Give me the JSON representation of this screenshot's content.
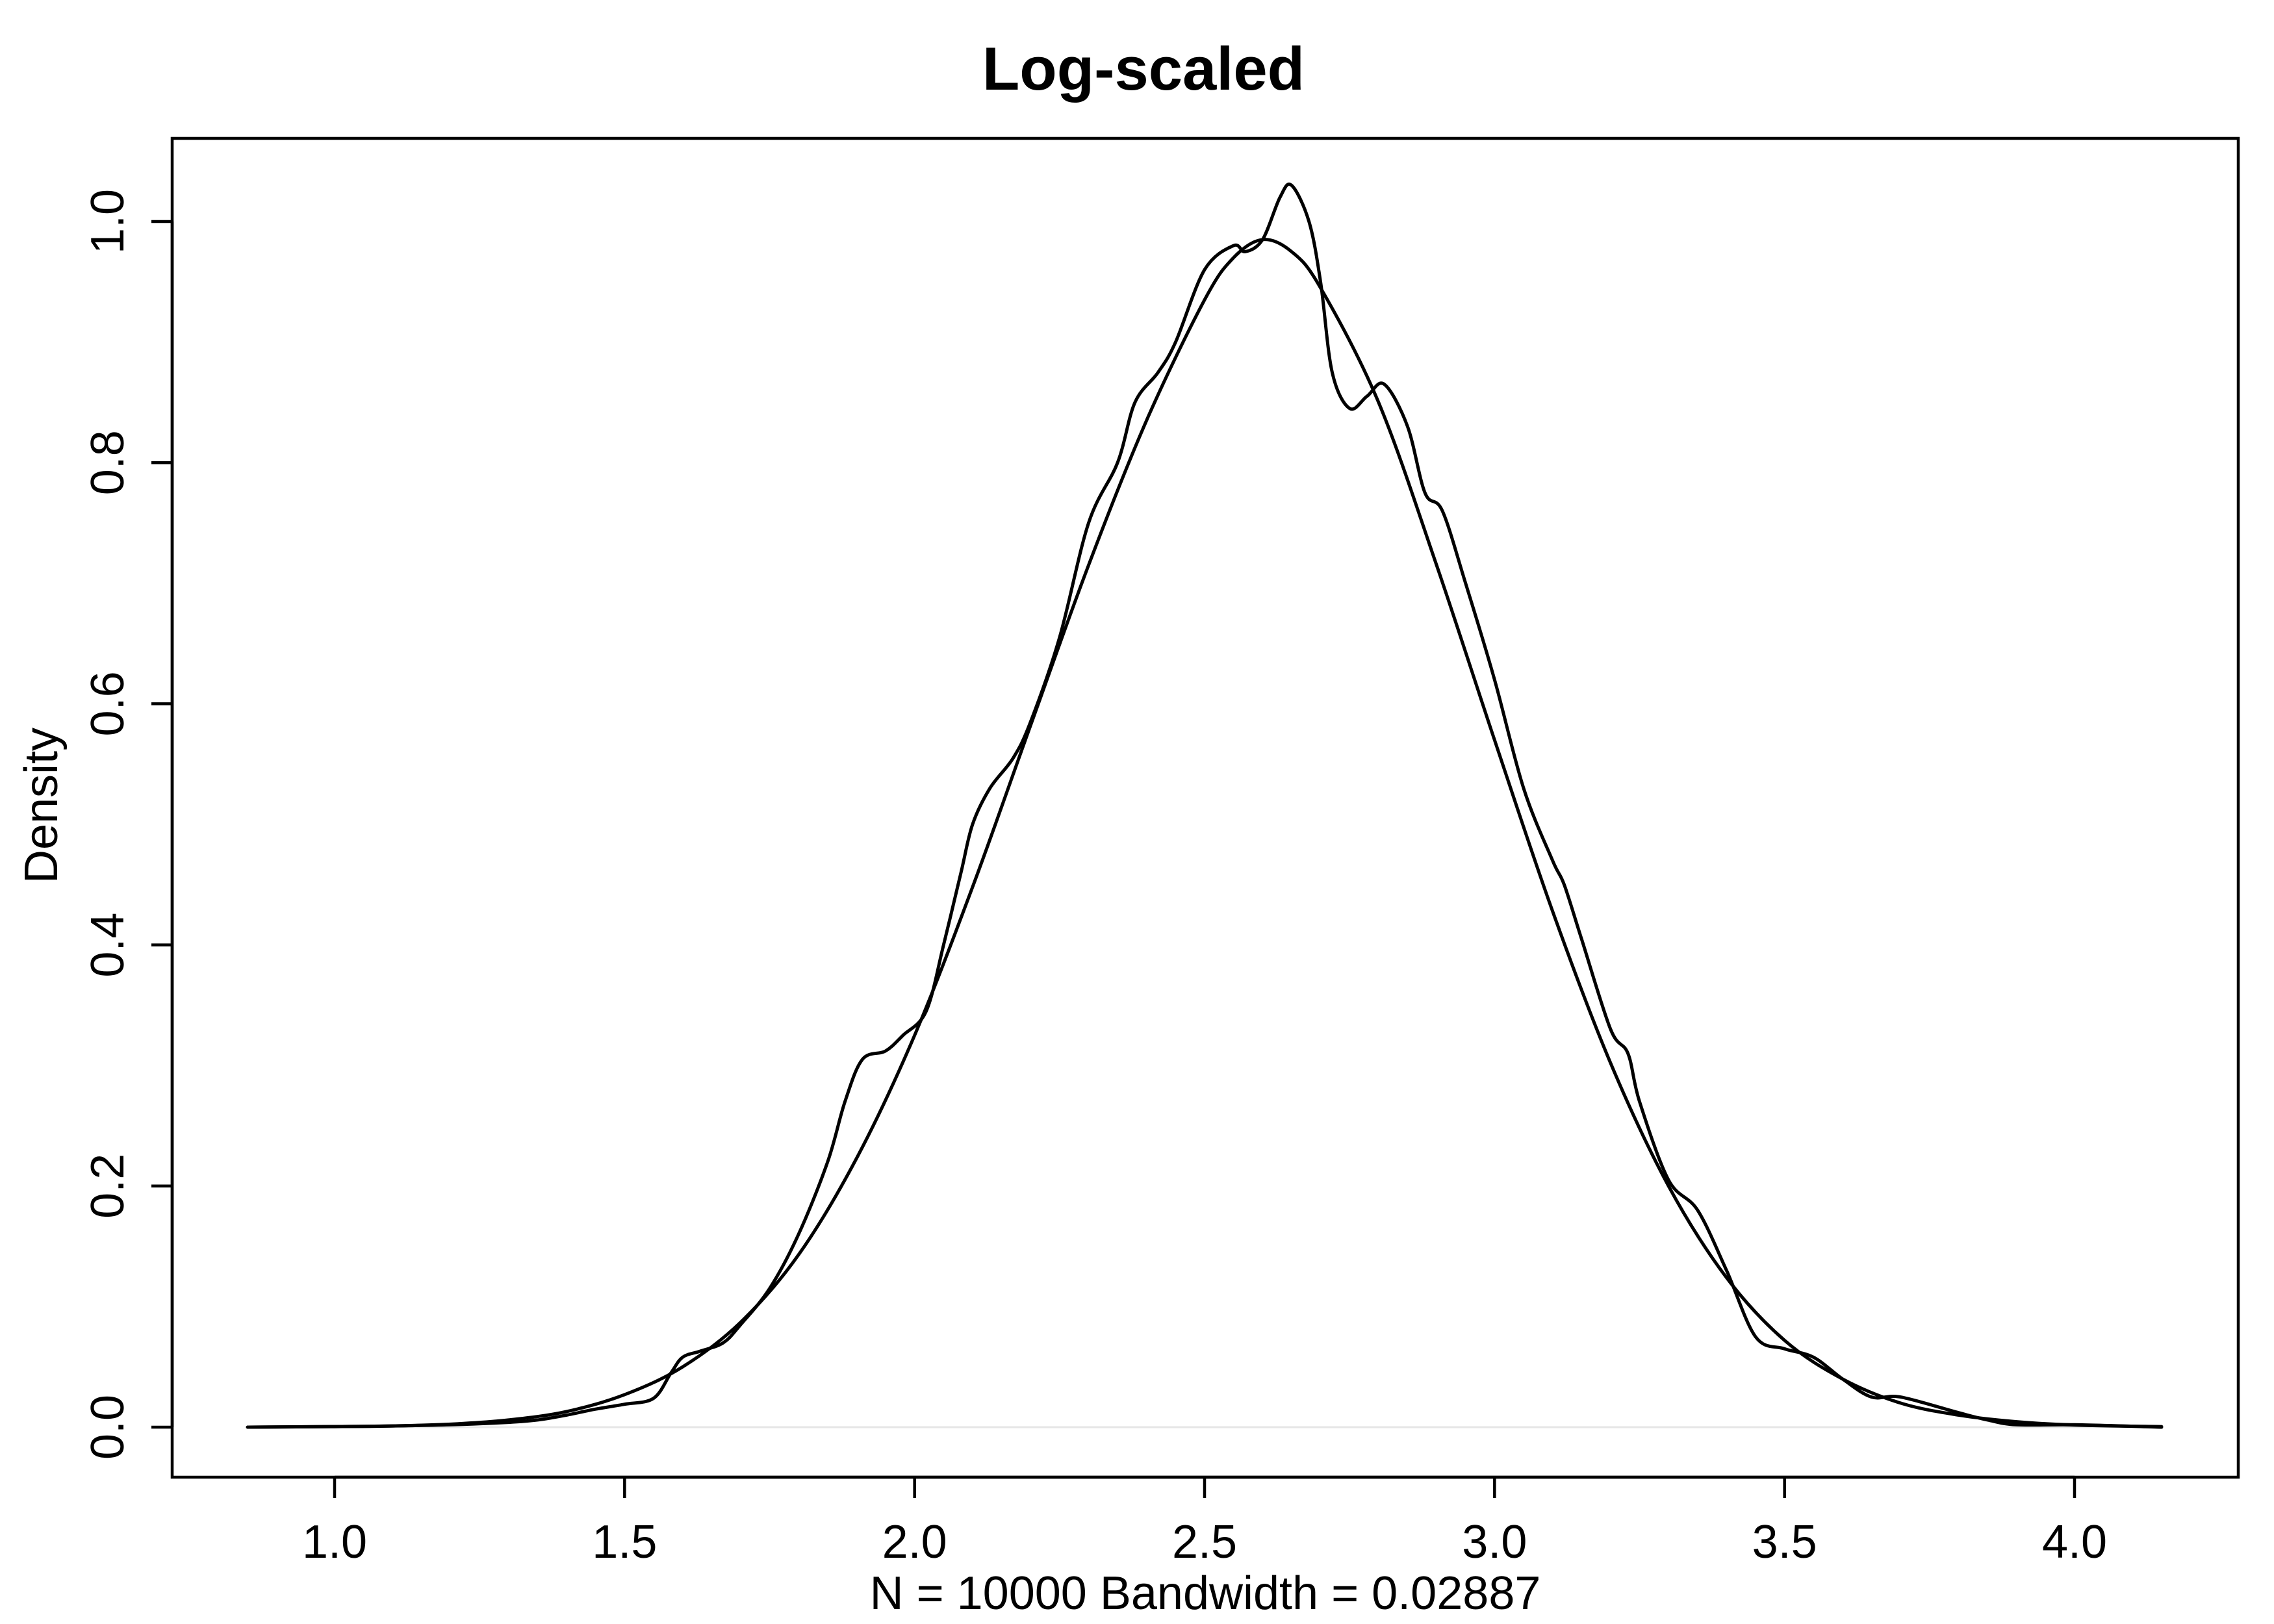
{
  "chart_data": {
    "type": "line",
    "title": "Log-scaled",
    "xlabel": "N = 10000   Bandwidth = 0.02887",
    "ylabel": "Density",
    "xlim": [
      0.85,
      4.15
    ],
    "ylim": [
      0,
      1.04
    ],
    "x_ticks": [
      1.0,
      1.5,
      2.0,
      2.5,
      3.0,
      3.5,
      4.0
    ],
    "x_tick_labels": [
      "1.0",
      "1.5",
      "2.0",
      "2.5",
      "3.0",
      "3.5",
      "4.0"
    ],
    "y_ticks": [
      0.0,
      0.2,
      0.4,
      0.6,
      0.8,
      1.0
    ],
    "y_tick_labels": [
      "0.0",
      "0.2",
      "0.4",
      "0.6",
      "0.8",
      "1.0"
    ],
    "zero_line": true,
    "grid": false,
    "series": [
      {
        "values": [
          [
            0.85,
            0.0
          ],
          [
            1.0,
            0.0005
          ],
          [
            1.1,
            0.001
          ],
          [
            1.2,
            0.002
          ],
          [
            1.3,
            0.004
          ],
          [
            1.35,
            0.006
          ],
          [
            1.4,
            0.01
          ],
          [
            1.45,
            0.015
          ],
          [
            1.5,
            0.019
          ],
          [
            1.55,
            0.024
          ],
          [
            1.58,
            0.045
          ],
          [
            1.6,
            0.058
          ],
          [
            1.63,
            0.063
          ],
          [
            1.67,
            0.07
          ],
          [
            1.7,
            0.085
          ],
          [
            1.75,
            0.115
          ],
          [
            1.8,
            0.16
          ],
          [
            1.85,
            0.22
          ],
          [
            1.88,
            0.27
          ],
          [
            1.91,
            0.305
          ],
          [
            1.95,
            0.312
          ],
          [
            1.98,
            0.325
          ],
          [
            2.02,
            0.345
          ],
          [
            2.05,
            0.4
          ],
          [
            2.08,
            0.46
          ],
          [
            2.1,
            0.5
          ],
          [
            2.13,
            0.53
          ],
          [
            2.17,
            0.555
          ],
          [
            2.2,
            0.585
          ],
          [
            2.25,
            0.655
          ],
          [
            2.3,
            0.75
          ],
          [
            2.35,
            0.8
          ],
          [
            2.38,
            0.85
          ],
          [
            2.42,
            0.875
          ],
          [
            2.45,
            0.9
          ],
          [
            2.5,
            0.96
          ],
          [
            2.55,
            0.98
          ],
          [
            2.57,
            0.975
          ],
          [
            2.6,
            0.985
          ],
          [
            2.63,
            1.02
          ],
          [
            2.65,
            1.03
          ],
          [
            2.68,
            1.0
          ],
          [
            2.7,
            0.95
          ],
          [
            2.72,
            0.875
          ],
          [
            2.75,
            0.845
          ],
          [
            2.78,
            0.855
          ],
          [
            2.81,
            0.865
          ],
          [
            2.85,
            0.83
          ],
          [
            2.88,
            0.775
          ],
          [
            2.91,
            0.76
          ],
          [
            2.95,
            0.7
          ],
          [
            3.0,
            0.62
          ],
          [
            3.05,
            0.53
          ],
          [
            3.1,
            0.47
          ],
          [
            3.12,
            0.45
          ],
          [
            3.15,
            0.405
          ],
          [
            3.2,
            0.33
          ],
          [
            3.23,
            0.31
          ],
          [
            3.25,
            0.27
          ],
          [
            3.3,
            0.205
          ],
          [
            3.35,
            0.18
          ],
          [
            3.4,
            0.13
          ],
          [
            3.45,
            0.075
          ],
          [
            3.5,
            0.065
          ],
          [
            3.55,
            0.058
          ],
          [
            3.6,
            0.04
          ],
          [
            3.65,
            0.025
          ],
          [
            3.7,
            0.025
          ],
          [
            3.8,
            0.012
          ],
          [
            3.85,
            0.006
          ],
          [
            3.9,
            0.002
          ],
          [
            4.0,
            0.002
          ],
          [
            4.15,
            0.0
          ]
        ]
      },
      {
        "values": [
          [
            0.85,
            0.0
          ],
          [
            1.0,
            0.0005
          ],
          [
            1.1,
            0.001
          ],
          [
            1.2,
            0.0025
          ],
          [
            1.3,
            0.006
          ],
          [
            1.4,
            0.013
          ],
          [
            1.5,
            0.027
          ],
          [
            1.6,
            0.05
          ],
          [
            1.7,
            0.087
          ],
          [
            1.8,
            0.143
          ],
          [
            1.9,
            0.223
          ],
          [
            2.0,
            0.325
          ],
          [
            2.1,
            0.448
          ],
          [
            2.2,
            0.582
          ],
          [
            2.3,
            0.715
          ],
          [
            2.4,
            0.835
          ],
          [
            2.5,
            0.935
          ],
          [
            2.55,
            0.97
          ],
          [
            2.6,
            0.985
          ],
          [
            2.65,
            0.975
          ],
          [
            2.7,
            0.945
          ],
          [
            2.8,
            0.85
          ],
          [
            2.9,
            0.715
          ],
          [
            3.0,
            0.57
          ],
          [
            3.1,
            0.428
          ],
          [
            3.2,
            0.302
          ],
          [
            3.3,
            0.2
          ],
          [
            3.4,
            0.124
          ],
          [
            3.5,
            0.072
          ],
          [
            3.6,
            0.04
          ],
          [
            3.7,
            0.02
          ],
          [
            3.8,
            0.01
          ],
          [
            3.9,
            0.0045
          ],
          [
            4.0,
            0.0018
          ],
          [
            4.15,
            0.0005
          ]
        ]
      }
    ]
  }
}
